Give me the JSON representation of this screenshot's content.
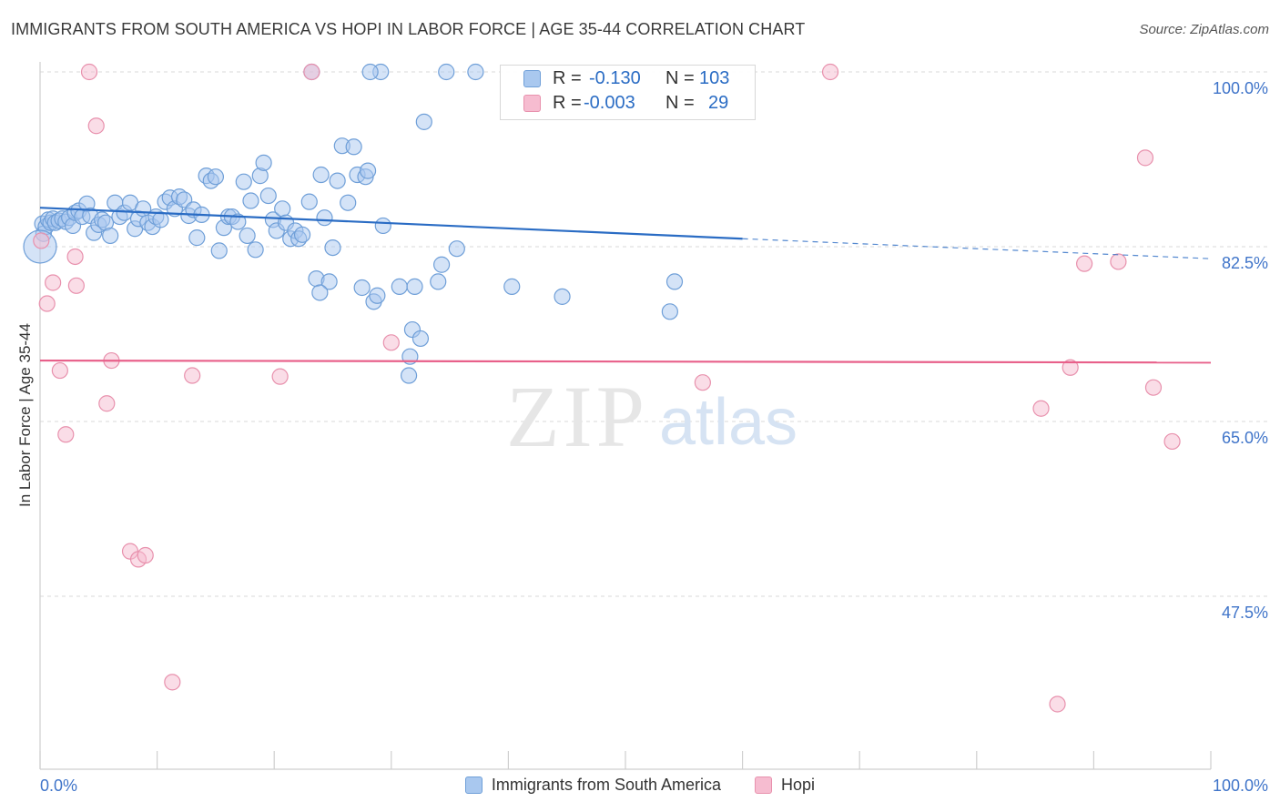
{
  "title": "IMMIGRANTS FROM SOUTH AMERICA VS HOPI IN LABOR FORCE | AGE 35-44 CORRELATION CHART",
  "source": "Source: ZipAtlas.com",
  "watermark": {
    "zip": "ZIP",
    "atlas": "atlas"
  },
  "colors": {
    "blue_fill": "#a9c8ef",
    "blue_stroke": "#6f9fd8",
    "blue_line": "#2a6cc4",
    "pink_fill": "#f6bcd0",
    "pink_stroke": "#e891ad",
    "pink_line": "#e8608a",
    "grid": "#d9d9d9",
    "tick_label": "#3f74c9"
  },
  "stats": {
    "row1": {
      "r_label": "R =",
      "r_value": "-0.130",
      "n_label": "N =",
      "n_value": "103"
    },
    "row2": {
      "r_label": "R =",
      "r_value": "-0.003",
      "n_label": "N =",
      "n_value": "29"
    }
  },
  "chart_data": {
    "type": "scatter",
    "ylabel": "In Labor Force | Age 35-44",
    "xlim": [
      0,
      100
    ],
    "ylim": [
      30,
      102
    ],
    "x_tick_labels": [
      "0.0%",
      "100.0%"
    ],
    "y_ticks": [
      {
        "value": 100,
        "label": "100.0%"
      },
      {
        "value": 82.5,
        "label": "82.5%"
      },
      {
        "value": 65,
        "label": "65.0%"
      },
      {
        "value": 47.5,
        "label": "47.5%"
      }
    ],
    "grid": "horizontal-dashed",
    "legend": "bottom",
    "series": [
      {
        "name": "Immigrants from South America",
        "color": "blue",
        "trend": {
          "x": [
            0,
            60
          ],
          "y": [
            86.4,
            83.3
          ],
          "dashed_to": [
            100,
            81.3
          ]
        },
        "points": [
          [
            0.2,
            84.8
          ],
          [
            0.3,
            83.8
          ],
          [
            0.5,
            84.5
          ],
          [
            0.7,
            85.2
          ],
          [
            0.9,
            84.9
          ],
          [
            1.1,
            85.3
          ],
          [
            1.3,
            84.9
          ],
          [
            1.6,
            85.1
          ],
          [
            1.9,
            85.3
          ],
          [
            2.2,
            85.0
          ],
          [
            2.5,
            85.4
          ],
          [
            2.8,
            84.6
          ],
          [
            3.0,
            85.9
          ],
          [
            3.3,
            86.1
          ],
          [
            3.6,
            85.5
          ],
          [
            4.0,
            86.8
          ],
          [
            4.3,
            85.6
          ],
          [
            4.6,
            83.9
          ],
          [
            5.0,
            84.7
          ],
          [
            5.3,
            85.2
          ],
          [
            5.6,
            84.9
          ],
          [
            6.0,
            83.6
          ],
          [
            6.4,
            86.9
          ],
          [
            6.8,
            85.5
          ],
          [
            7.2,
            85.9
          ],
          [
            7.7,
            86.9
          ],
          [
            8.1,
            84.3
          ],
          [
            8.4,
            85.3
          ],
          [
            8.8,
            86.3
          ],
          [
            9.2,
            84.9
          ],
          [
            9.6,
            84.5
          ],
          [
            9.9,
            85.5
          ],
          [
            10.3,
            85.2
          ],
          [
            10.7,
            87.0
          ],
          [
            11.1,
            87.4
          ],
          [
            11.5,
            86.3
          ],
          [
            11.9,
            87.5
          ],
          [
            12.3,
            87.2
          ],
          [
            12.7,
            85.6
          ],
          [
            13.1,
            86.2
          ],
          [
            13.4,
            83.4
          ],
          [
            13.8,
            85.7
          ],
          [
            14.2,
            89.6
          ],
          [
            14.6,
            89.1
          ],
          [
            15.0,
            89.5
          ],
          [
            15.3,
            82.1
          ],
          [
            15.7,
            84.4
          ],
          [
            16.1,
            85.5
          ],
          [
            16.4,
            85.5
          ],
          [
            16.9,
            85.0
          ],
          [
            17.4,
            89.0
          ],
          [
            17.7,
            83.6
          ],
          [
            18.0,
            87.1
          ],
          [
            18.4,
            82.2
          ],
          [
            18.8,
            89.6
          ],
          [
            19.1,
            90.9
          ],
          [
            19.5,
            87.6
          ],
          [
            19.9,
            85.2
          ],
          [
            20.2,
            84.1
          ],
          [
            20.7,
            86.3
          ],
          [
            21.0,
            84.9
          ],
          [
            21.4,
            83.3
          ],
          [
            21.8,
            84.1
          ],
          [
            22.1,
            83.3
          ],
          [
            22.4,
            83.7
          ],
          [
            23.0,
            87.0
          ],
          [
            23.6,
            79.3
          ],
          [
            24.0,
            89.7
          ],
          [
            24.3,
            85.4
          ],
          [
            24.7,
            79.0
          ],
          [
            23.9,
            77.9
          ],
          [
            25.0,
            82.4
          ],
          [
            25.4,
            89.1
          ],
          [
            25.8,
            92.6
          ],
          [
            26.3,
            86.9
          ],
          [
            26.8,
            92.5
          ],
          [
            27.1,
            89.7
          ],
          [
            27.5,
            78.4
          ],
          [
            27.8,
            89.5
          ],
          [
            28.0,
            90.1
          ],
          [
            28.5,
            77.0
          ],
          [
            28.8,
            77.6
          ],
          [
            29.3,
            84.6
          ],
          [
            29.1,
            100.0
          ],
          [
            23.2,
            100.0
          ],
          [
            28.2,
            100.0
          ],
          [
            34.7,
            100.0
          ],
          [
            37.2,
            100.0
          ],
          [
            30.7,
            78.5
          ],
          [
            31.6,
            71.5
          ],
          [
            32.0,
            78.5
          ],
          [
            31.5,
            69.6
          ],
          [
            31.8,
            74.2
          ],
          [
            32.5,
            73.3
          ],
          [
            34.0,
            79.0
          ],
          [
            35.6,
            82.3
          ],
          [
            34.3,
            80.7
          ],
          [
            32.8,
            95.0
          ],
          [
            40.3,
            78.5
          ],
          [
            44.6,
            77.5
          ],
          [
            53.8,
            76.0
          ],
          [
            54.2,
            79.0
          ],
          [
            0.0,
            82.5
          ]
        ]
      },
      {
        "name": "Hopi",
        "color": "pink",
        "trend": {
          "x": [
            0,
            100
          ],
          "y": [
            71.1,
            70.9
          ]
        },
        "points": [
          [
            0.1,
            83.1
          ],
          [
            0.6,
            76.8
          ],
          [
            1.1,
            78.9
          ],
          [
            1.7,
            70.1
          ],
          [
            2.2,
            63.7
          ],
          [
            3.0,
            81.5
          ],
          [
            3.1,
            78.6
          ],
          [
            4.8,
            94.6
          ],
          [
            4.2,
            100.0
          ],
          [
            5.7,
            66.8
          ],
          [
            6.1,
            71.1
          ],
          [
            7.7,
            52.0
          ],
          [
            8.4,
            51.2
          ],
          [
            9.0,
            51.6
          ],
          [
            11.3,
            38.9
          ],
          [
            13.0,
            69.6
          ],
          [
            20.5,
            69.5
          ],
          [
            23.2,
            100.0
          ],
          [
            30.0,
            72.9
          ],
          [
            56.6,
            68.9
          ],
          [
            67.5,
            100.0
          ],
          [
            85.5,
            66.3
          ],
          [
            88.0,
            70.4
          ],
          [
            89.2,
            80.8
          ],
          [
            92.1,
            81.0
          ],
          [
            94.4,
            91.4
          ],
          [
            95.1,
            68.4
          ],
          [
            96.7,
            63.0
          ],
          [
            86.9,
            36.7
          ]
        ]
      }
    ]
  }
}
